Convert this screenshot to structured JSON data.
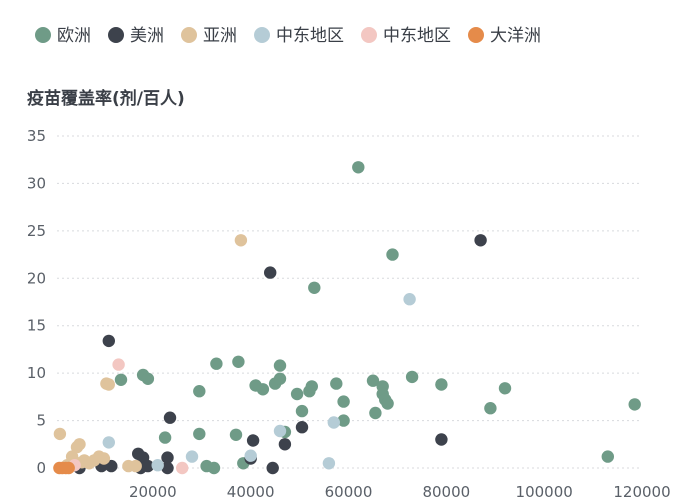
{
  "chart_data": {
    "type": "scatter",
    "ylabel": "疫苗覆盖率(剂/百人)",
    "xlabel": "",
    "xlim": [
      0,
      120000
    ],
    "ylim": [
      0,
      35
    ],
    "x_ticks": [
      20000,
      40000,
      60000,
      80000,
      100000,
      120000
    ],
    "y_ticks": [
      0,
      5,
      10,
      15,
      20,
      25,
      30,
      35
    ],
    "grid": "horizontal dashed",
    "legend_position": "top-left",
    "series": [
      {
        "name": "欧洲",
        "color": "#6f9b87",
        "points": [
          [
            13500,
            9.3
          ],
          [
            18000,
            9.8
          ],
          [
            19000,
            9.4
          ],
          [
            22500,
            3.2
          ],
          [
            29500,
            3.6
          ],
          [
            29500,
            8.1
          ],
          [
            31000,
            0.2
          ],
          [
            32500,
            0.0
          ],
          [
            33000,
            11.0
          ],
          [
            37000,
            3.5
          ],
          [
            37500,
            11.2
          ],
          [
            38500,
            0.5
          ],
          [
            41000,
            8.7
          ],
          [
            42500,
            8.3
          ],
          [
            45000,
            8.9
          ],
          [
            46000,
            10.8
          ],
          [
            46000,
            9.4
          ],
          [
            47000,
            3.8
          ],
          [
            49500,
            7.8
          ],
          [
            50500,
            6.0
          ],
          [
            52000,
            8.1
          ],
          [
            52500,
            8.6
          ],
          [
            53000,
            19.0
          ],
          [
            57500,
            8.9
          ],
          [
            59000,
            7.0
          ],
          [
            59000,
            5.0
          ],
          [
            62000,
            31.7
          ],
          [
            65000,
            9.2
          ],
          [
            65500,
            5.8
          ],
          [
            67000,
            8.6
          ],
          [
            67000,
            7.8
          ],
          [
            67500,
            7.2
          ],
          [
            68000,
            6.8
          ],
          [
            69000,
            22.5
          ],
          [
            73000,
            9.6
          ],
          [
            79000,
            8.8
          ],
          [
            89000,
            6.3
          ],
          [
            92000,
            8.4
          ],
          [
            113000,
            1.2
          ],
          [
            118500,
            6.7
          ]
        ]
      },
      {
        "name": "美洲",
        "color": "#3d424c",
        "points": [
          [
            5000,
            0.0
          ],
          [
            9500,
            0.2
          ],
          [
            11000,
            13.4
          ],
          [
            11500,
            0.2
          ],
          [
            17000,
            1.5
          ],
          [
            17500,
            0.0
          ],
          [
            18000,
            1.1
          ],
          [
            19000,
            0.2
          ],
          [
            23000,
            1.1
          ],
          [
            23500,
            5.3
          ],
          [
            23000,
            0.0
          ],
          [
            40000,
            1.0
          ],
          [
            40500,
            2.9
          ],
          [
            44000,
            20.6
          ],
          [
            44500,
            0.0
          ],
          [
            47000,
            2.5
          ],
          [
            50500,
            4.3
          ],
          [
            79000,
            3.0
          ],
          [
            87000,
            24.0
          ]
        ]
      },
      {
        "name": "亚洲",
        "color": "#dfc39c",
        "points": [
          [
            1000,
            3.6
          ],
          [
            2500,
            0.3
          ],
          [
            3500,
            1.2
          ],
          [
            4500,
            2.2
          ],
          [
            5000,
            2.5
          ],
          [
            5500,
            0.6
          ],
          [
            6000,
            0.8
          ],
          [
            7000,
            0.5
          ],
          [
            8000,
            0.8
          ],
          [
            9000,
            1.2
          ],
          [
            10000,
            1.0
          ],
          [
            10500,
            8.9
          ],
          [
            11000,
            8.8
          ],
          [
            15000,
            0.2
          ],
          [
            16500,
            0.2
          ],
          [
            38000,
            24.0
          ]
        ]
      },
      {
        "name": "中东地区",
        "color": "#b5ccd6",
        "points": [
          [
            11000,
            2.7
          ],
          [
            21000,
            0.3
          ],
          [
            28000,
            1.2
          ],
          [
            40000,
            1.3
          ],
          [
            46000,
            3.9
          ],
          [
            57000,
            4.8
          ],
          [
            56000,
            0.5
          ],
          [
            72500,
            17.8
          ]
        ]
      },
      {
        "name": "中东地区",
        "color": "#f3c7c2",
        "points": [
          [
            4000,
            0.3
          ],
          [
            13000,
            10.9
          ],
          [
            26000,
            0.0
          ]
        ]
      },
      {
        "name": "大洋洲",
        "color": "#e58b4a",
        "points": [
          [
            900,
            0.0
          ],
          [
            1500,
            0.0
          ],
          [
            2200,
            0.0
          ],
          [
            2800,
            0.0
          ]
        ]
      }
    ]
  }
}
